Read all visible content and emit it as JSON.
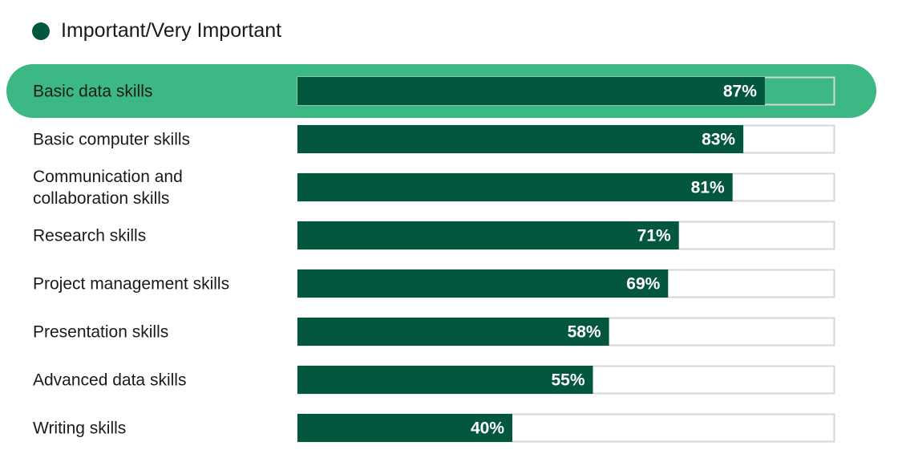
{
  "legend": {
    "label": "Important/Very Important",
    "color": "#03573f"
  },
  "colors": {
    "bar": "#03573f",
    "track_border": "#d6d6d6",
    "highlight": "#3bb884"
  },
  "chart_data": {
    "type": "bar",
    "orientation": "horizontal",
    "categories": [
      [
        "Basic data skills"
      ],
      [
        "Basic computer skills"
      ],
      [
        "Communication and",
        "collaboration skills"
      ],
      [
        "Research skills"
      ],
      [
        "Project management skills"
      ],
      [
        "Presentation skills"
      ],
      [
        "Advanced data skills"
      ],
      [
        "Writing skills"
      ]
    ],
    "series": [
      {
        "name": "Important/Very Important",
        "values": [
          87,
          83,
          81,
          71,
          69,
          58,
          55,
          40
        ]
      }
    ],
    "value_labels": [
      "87%",
      "83%",
      "81%",
      "71%",
      "69%",
      "58%",
      "55%",
      "40%"
    ],
    "xlim": [
      0,
      100
    ],
    "highlighted_category": "Basic data skills",
    "grid": false,
    "legend_position": "top-left"
  }
}
